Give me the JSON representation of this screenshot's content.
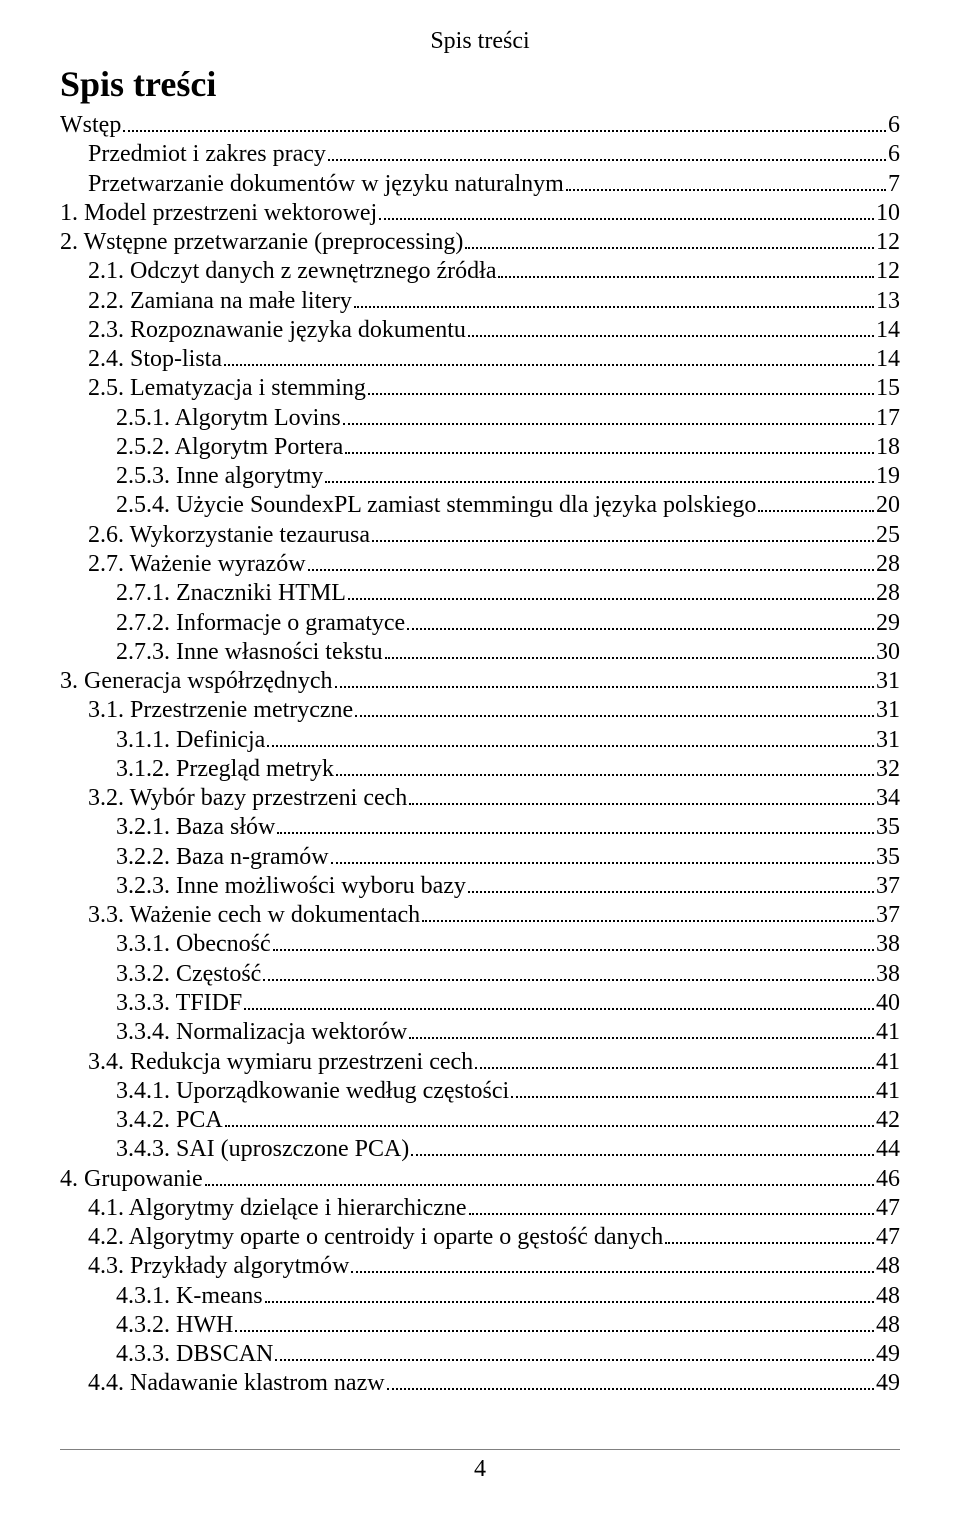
{
  "header_text": "Spis treści",
  "title_text": "Spis treści",
  "page_number": "4",
  "colors": {
    "text": "#000000",
    "background": "#ffffff",
    "rule": "#808080"
  },
  "typography": {
    "font_family": "Times New Roman",
    "header_size_pt": 18,
    "title_size_pt": 27,
    "body_size_pt": 18
  },
  "entries": [
    {
      "label": "Wstęp",
      "page": "6",
      "indent": 1
    },
    {
      "label": "Przedmiot i zakres pracy",
      "page": "6",
      "indent": 2
    },
    {
      "label": "Przetwarzanie dokumentów w języku naturalnym",
      "page": "7",
      "indent": 2
    },
    {
      "label": "1. Model przestrzeni wektorowej",
      "page": "10",
      "indent": 1
    },
    {
      "label": "2. Wstępne przetwarzanie (preprocessing)",
      "page": "12",
      "indent": 1
    },
    {
      "label": "2.1. Odczyt danych z zewnętrznego źródła",
      "page": "12",
      "indent": 2
    },
    {
      "label": "2.2. Zamiana na małe litery",
      "page": "13",
      "indent": 2
    },
    {
      "label": "2.3. Rozpoznawanie języka dokumentu",
      "page": "14",
      "indent": 2
    },
    {
      "label": "2.4. Stop-lista",
      "page": "14",
      "indent": 2
    },
    {
      "label": "2.5. Lematyzacja i stemming",
      "page": "15",
      "indent": 2
    },
    {
      "label": "2.5.1. Algorytm Lovins",
      "page": "17",
      "indent": 3
    },
    {
      "label": "2.5.2. Algorytm Portera",
      "page": "18",
      "indent": 3
    },
    {
      "label": "2.5.3. Inne algorytmy",
      "page": "19",
      "indent": 3
    },
    {
      "label": "2.5.4. Użycie SoundexPL zamiast stemmingu dla języka polskiego",
      "page": "20",
      "indent": 3
    },
    {
      "label": "2.6. Wykorzystanie tezaurusa",
      "page": "25",
      "indent": 2
    },
    {
      "label": "2.7. Ważenie wyrazów",
      "page": "28",
      "indent": 2
    },
    {
      "label": "2.7.1. Znaczniki HTML",
      "page": "28",
      "indent": 3
    },
    {
      "label": "2.7.2. Informacje o gramatyce",
      "page": "29",
      "indent": 3
    },
    {
      "label": "2.7.3. Inne własności tekstu",
      "page": "30",
      "indent": 3
    },
    {
      "label": "3. Generacja współrzędnych",
      "page": "31",
      "indent": 1
    },
    {
      "label": "3.1. Przestrzenie metryczne",
      "page": "31",
      "indent": 2
    },
    {
      "label": "3.1.1. Definicja",
      "page": "31",
      "indent": 3
    },
    {
      "label": "3.1.2. Przegląd metryk",
      "page": "32",
      "indent": 3
    },
    {
      "label": "3.2. Wybór bazy przestrzeni cech",
      "page": "34",
      "indent": 2
    },
    {
      "label": "3.2.1. Baza słów",
      "page": "35",
      "indent": 3
    },
    {
      "label": "3.2.2. Baza n-gramów",
      "page": "35",
      "indent": 3
    },
    {
      "label": "3.2.3. Inne możliwości wyboru bazy",
      "page": "37",
      "indent": 3
    },
    {
      "label": "3.3. Ważenie cech w dokumentach",
      "page": "37",
      "indent": 2
    },
    {
      "label": "3.3.1. Obecność",
      "page": "38",
      "indent": 3
    },
    {
      "label": "3.3.2. Częstość",
      "page": "38",
      "indent": 3
    },
    {
      "label": "3.3.3. TFIDF",
      "page": "40",
      "indent": 3
    },
    {
      "label": "3.3.4. Normalizacja wektorów",
      "page": "41",
      "indent": 3
    },
    {
      "label": "3.4. Redukcja wymiaru przestrzeni cech",
      "page": "41",
      "indent": 2
    },
    {
      "label": "3.4.1. Uporządkowanie według częstości",
      "page": "41",
      "indent": 3
    },
    {
      "label": "3.4.2. PCA",
      "page": "42",
      "indent": 3
    },
    {
      "label": "3.4.3. SAI (uproszczone PCA)",
      "page": "44",
      "indent": 3
    },
    {
      "label": "4. Grupowanie",
      "page": "46",
      "indent": 1
    },
    {
      "label": "4.1. Algorytmy dzielące i hierarchiczne",
      "page": "47",
      "indent": 2
    },
    {
      "label": "4.2. Algorytmy oparte o centroidy i oparte o gęstość danych",
      "page": "47",
      "indent": 2
    },
    {
      "label": "4.3. Przykłady algorytmów",
      "page": "48",
      "indent": 2
    },
    {
      "label": "4.3.1. K-means",
      "page": "48",
      "indent": 3
    },
    {
      "label": "4.3.2. HWH",
      "page": "48",
      "indent": 3
    },
    {
      "label": "4.3.3. DBSCAN",
      "page": "49",
      "indent": 3
    },
    {
      "label": "4.4. Nadawanie klastrom nazw",
      "page": "49",
      "indent": 2
    }
  ]
}
